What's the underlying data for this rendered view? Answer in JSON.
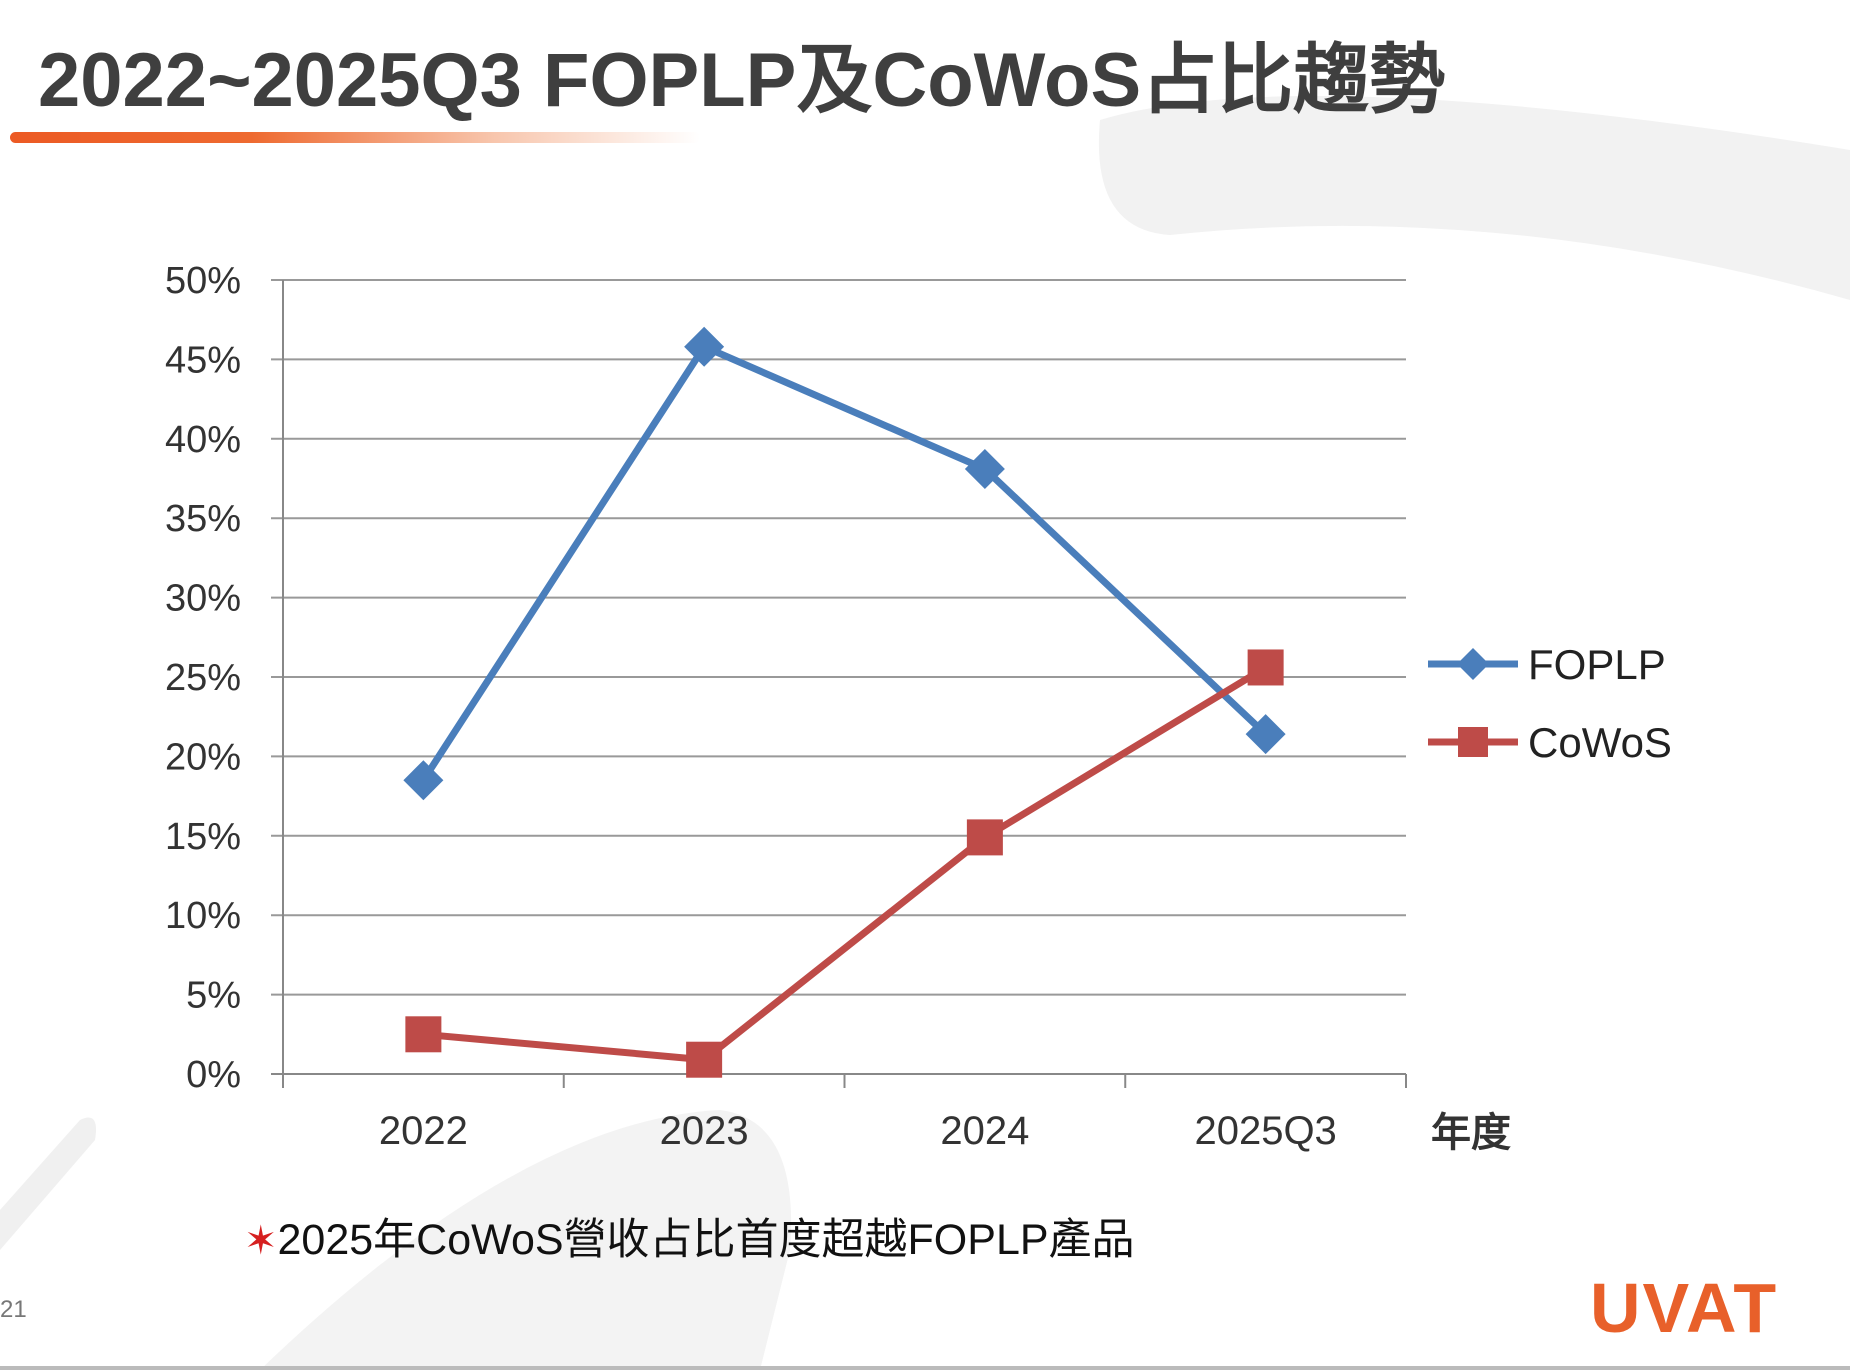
{
  "title": "2022~2025Q3 FOPLP及CoWoS占比趨勢",
  "footnote": {
    "marker": "✶",
    "text": "2025年CoWoS營收占比首度超越FOPLP產品"
  },
  "page_number": "21",
  "logo": "UVAT",
  "colors": {
    "accent": "#ec5a24",
    "foplp": "#4a7ebb",
    "cowos": "#be4b48"
  },
  "chart_data": {
    "type": "line",
    "title": "",
    "xlabel": "年度",
    "ylabel": "",
    "categories": [
      "2022",
      "2023",
      "2024",
      "2025Q3"
    ],
    "ylim": [
      0,
      50
    ],
    "yticks": [
      "0%",
      "5%",
      "10%",
      "15%",
      "20%",
      "25%",
      "30%",
      "35%",
      "40%",
      "45%",
      "50%"
    ],
    "grid": true,
    "legend": "right",
    "series": [
      {
        "name": "FOPLP",
        "marker": "diamond",
        "color": "#4a7ebb",
        "values": [
          18.5,
          45.8,
          38.1,
          21.4
        ]
      },
      {
        "name": "CoWoS",
        "marker": "square",
        "color": "#be4b48",
        "values": [
          2.5,
          0.9,
          14.9,
          25.6
        ]
      }
    ]
  }
}
